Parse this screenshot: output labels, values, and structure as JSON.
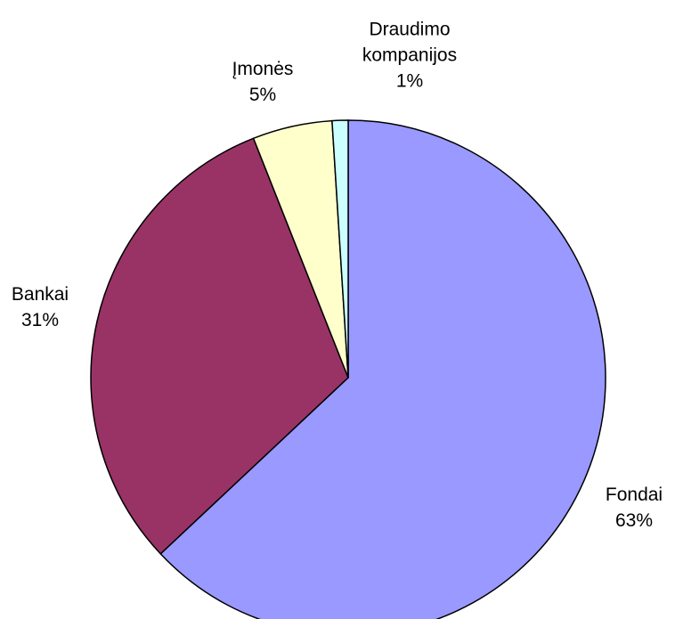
{
  "chart_data": {
    "type": "pie",
    "categories": [
      "Fondai",
      "Bankai",
      "Įmonės",
      "Draudimo kompanijos"
    ],
    "values": [
      63,
      31,
      5,
      1
    ],
    "value_labels": [
      "63%",
      "31%",
      "5%",
      "1%"
    ],
    "colors": [
      "#9999ff",
      "#993366",
      "#ffffcc",
      "#ccffff"
    ]
  }
}
